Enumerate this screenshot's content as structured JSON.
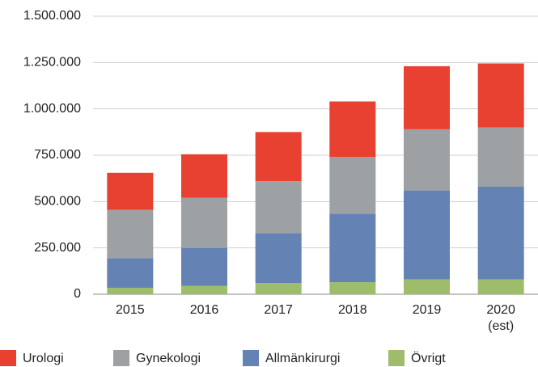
{
  "chart_data": {
    "type": "stacked_bar",
    "categories": [
      "2015",
      "2016",
      "2017",
      "2018",
      "2019",
      "2020\n(est)"
    ],
    "series": [
      {
        "name": "Urologi",
        "color": "#e84132",
        "values": [
          200000,
          235000,
          265000,
          300000,
          340000,
          345000
        ]
      },
      {
        "name": "Gynekologi",
        "color": "#9ea1a3",
        "values": [
          260000,
          270000,
          280000,
          305000,
          330000,
          320000
        ]
      },
      {
        "name": "Allmänkirurgi",
        "color": "#6582b5",
        "values": [
          160000,
          205000,
          270000,
          370000,
          480000,
          500000
        ]
      },
      {
        "name": "Övrigt",
        "color": "#9dbd6a",
        "values": [
          35000,
          45000,
          60000,
          65000,
          80000,
          80000
        ]
      }
    ],
    "ylim": [
      0,
      1500000
    ],
    "yticks": [
      0,
      {
        "value": 250000,
        "label": "250.000"
      },
      {
        "value": 500000,
        "label": "500.000"
      },
      {
        "value": 750000,
        "label": "750.000"
      },
      {
        "value": 1000000,
        "label": "1.000.000"
      },
      {
        "value": 1250000,
        "label": "1.250.000"
      },
      {
        "value": 1500000,
        "label": "1.500.000"
      }
    ],
    "grid": true,
    "legend": "bottom"
  }
}
